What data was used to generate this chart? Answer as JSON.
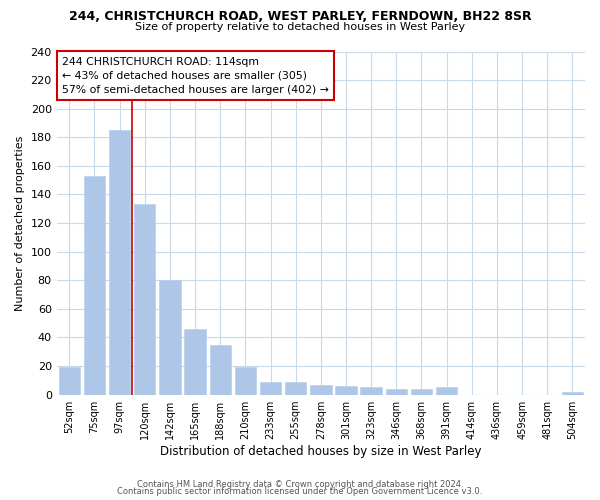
{
  "title1": "244, CHRISTCHURCH ROAD, WEST PARLEY, FERNDOWN, BH22 8SR",
  "title2": "Size of property relative to detached houses in West Parley",
  "xlabel": "Distribution of detached houses by size in West Parley",
  "ylabel": "Number of detached properties",
  "bar_labels": [
    "52sqm",
    "75sqm",
    "97sqm",
    "120sqm",
    "142sqm",
    "165sqm",
    "188sqm",
    "210sqm",
    "233sqm",
    "255sqm",
    "278sqm",
    "301sqm",
    "323sqm",
    "346sqm",
    "368sqm",
    "391sqm",
    "414sqm",
    "436sqm",
    "459sqm",
    "481sqm",
    "504sqm"
  ],
  "bar_values": [
    19,
    153,
    185,
    133,
    80,
    46,
    35,
    19,
    9,
    9,
    7,
    6,
    5,
    4,
    4,
    5,
    0,
    0,
    0,
    0,
    2
  ],
  "bar_color": "#aec6e8",
  "bar_edgecolor": "#b8d0ec",
  "vline_x": 2.5,
  "vline_color": "#cc0000",
  "annotation_line1": "244 CHRISTCHURCH ROAD: 114sqm",
  "annotation_line2": "← 43% of detached houses are smaller (305)",
  "annotation_line3": "57% of semi-detached houses are larger (402) →",
  "annotation_box_edgecolor": "#cc0000",
  "ylim": [
    0,
    240
  ],
  "yticks": [
    0,
    20,
    40,
    60,
    80,
    100,
    120,
    140,
    160,
    180,
    200,
    220,
    240
  ],
  "footer1": "Contains HM Land Registry data © Crown copyright and database right 2024.",
  "footer2": "Contains public sector information licensed under the Open Government Licence v3.0.",
  "bg_color": "#ffffff",
  "grid_color": "#c8daea"
}
